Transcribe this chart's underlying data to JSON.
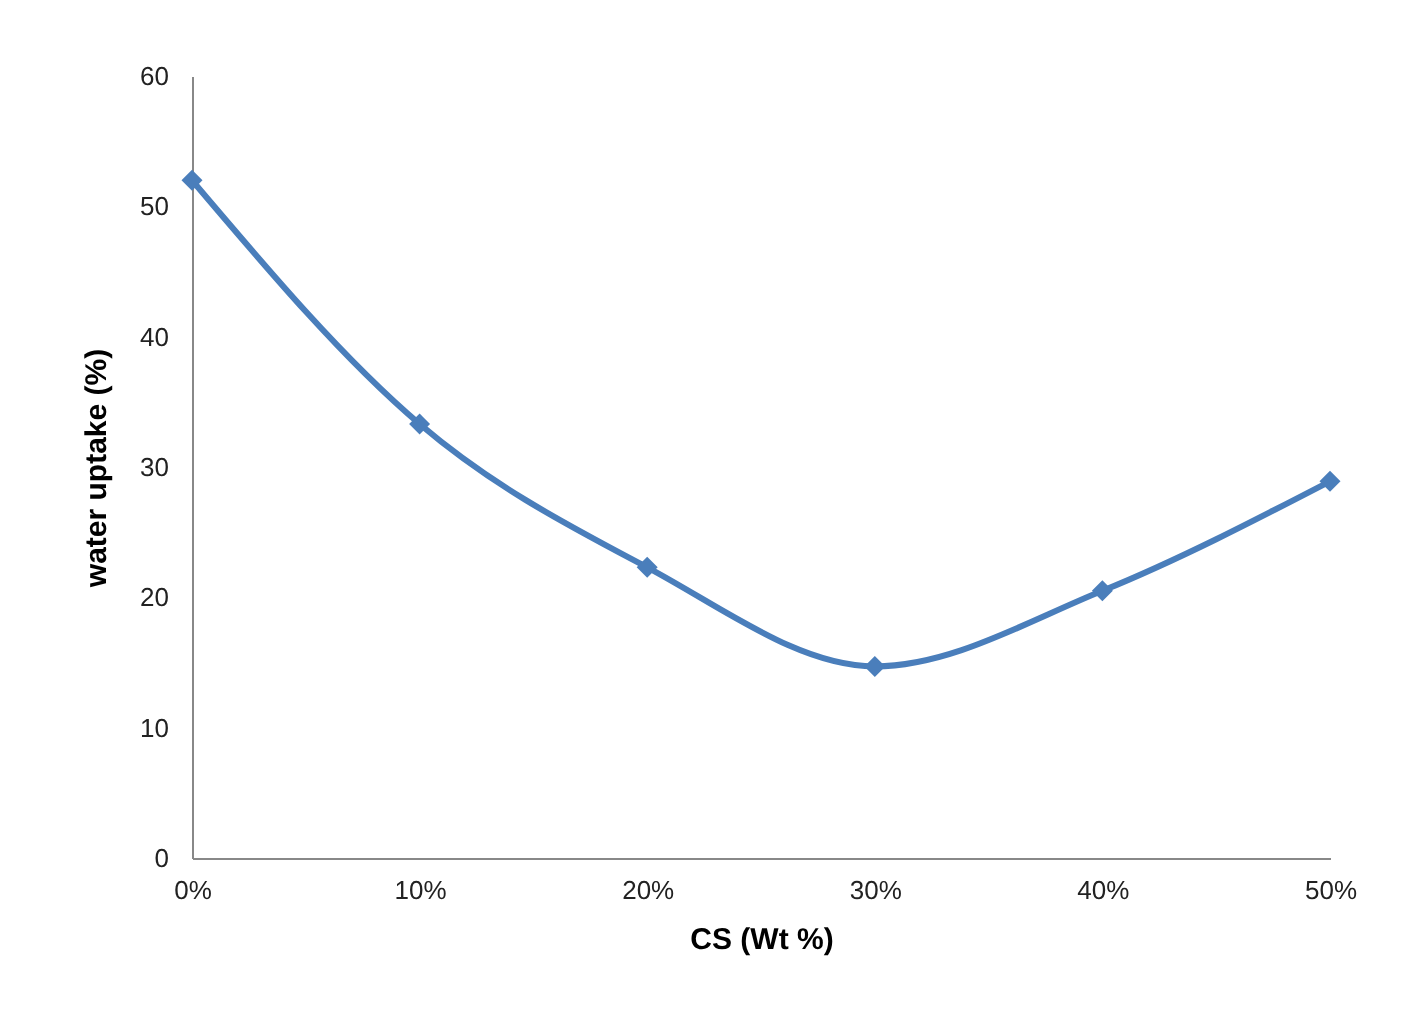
{
  "chart_data": {
    "type": "line",
    "xlabel": "CS (Wt %)",
    "ylabel": "water uptake (%)",
    "categories": [
      "0%",
      "10%",
      "20%",
      "30%",
      "40%",
      "50%"
    ],
    "series": [
      {
        "color": "#4a7ebb",
        "values": [
          52,
          33.3,
          22.3,
          14.7,
          20.5,
          28.9
        ]
      }
    ],
    "ylim": [
      0,
      60
    ],
    "yticks": [
      0,
      10,
      20,
      30,
      40,
      50,
      60
    ],
    "grid": false,
    "legend": false,
    "marker": "diamond",
    "line_style": "solid"
  }
}
